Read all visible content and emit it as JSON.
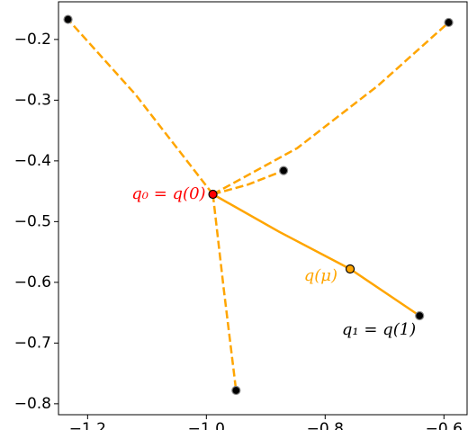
{
  "chart_data": {
    "type": "line",
    "xlim": [
      -1.249,
      -0.561
    ],
    "ylim": [
      -0.818,
      -0.138
    ],
    "xticks": [
      {
        "value": -1.2,
        "label": "−1.2"
      },
      {
        "value": -1.0,
        "label": "−1.0"
      },
      {
        "value": -0.8,
        "label": "−0.8"
      },
      {
        "value": -0.6,
        "label": "−0.6"
      }
    ],
    "yticks": [
      {
        "value": -0.2,
        "label": "−0.2"
      },
      {
        "value": -0.3,
        "label": "−0.3"
      },
      {
        "value": -0.4,
        "label": "−0.4"
      },
      {
        "value": -0.5,
        "label": "−0.5"
      },
      {
        "value": -0.6,
        "label": "−0.6"
      },
      {
        "value": -0.7,
        "label": "−0.7"
      },
      {
        "value": -0.8,
        "label": "−0.8"
      }
    ],
    "series": [
      {
        "color": "#ffa500",
        "linestyle": "dashed",
        "x": [
          -0.989,
          -1.12,
          -1.233
        ],
        "y": [
          -0.455,
          -0.29,
          -0.167
        ]
      },
      {
        "color": "#ffa500",
        "linestyle": "dashed",
        "x": [
          -0.989,
          -0.847,
          -0.711,
          -0.592
        ],
        "y": [
          -0.455,
          -0.379,
          -0.276,
          -0.172
        ]
      },
      {
        "color": "#ffa500",
        "linestyle": "dashed",
        "x": [
          -0.989,
          -0.93,
          -0.87
        ],
        "y": [
          -0.455,
          -0.439,
          -0.416
        ]
      },
      {
        "color": "#ffa500",
        "linestyle": "dashed",
        "x": [
          -0.989,
          -0.971,
          -0.95
        ],
        "y": [
          -0.455,
          -0.609,
          -0.778
        ]
      },
      {
        "color": "#ffa500",
        "linestyle": "solid",
        "x": [
          -0.989,
          -0.877,
          -0.758,
          -0.641
        ],
        "y": [
          -0.455,
          -0.517,
          -0.578,
          -0.655
        ]
      }
    ],
    "points": [
      {
        "x": -1.233,
        "y": -0.167,
        "color": "#000000"
      },
      {
        "x": -0.592,
        "y": -0.172,
        "color": "#000000"
      },
      {
        "x": -0.87,
        "y": -0.416,
        "color": "#000000"
      },
      {
        "x": -0.95,
        "y": -0.778,
        "color": "#000000"
      },
      {
        "x": -0.641,
        "y": -0.655,
        "color": "#000000",
        "label": "q₁ = q(1)"
      },
      {
        "x": -0.989,
        "y": -0.455,
        "color": "#ff0000",
        "label": "q₀ = q(0)"
      },
      {
        "x": -0.758,
        "y": -0.578,
        "color": "#ffa500",
        "label": "q(μ)"
      }
    ]
  }
}
